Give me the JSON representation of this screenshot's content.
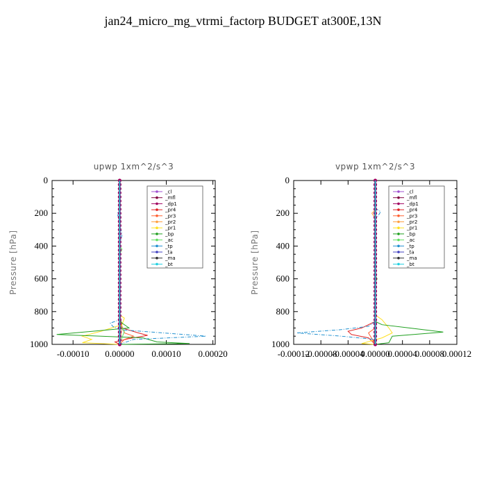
{
  "title": "jan24_micro_mg_vtrmi_factorp  BUDGET at300E,13N",
  "chart_data": [
    {
      "type": "line",
      "title": "upwp   1xm^2/s^3",
      "ylabel": "Pressure [hPa]",
      "xlabel": "",
      "xlim": [
        -0.000145,
        0.000205
      ],
      "ylim": [
        1000,
        0
      ],
      "x_ticks": [
        -0.0001,
        0.0,
        0.0001,
        0.0002
      ],
      "x_tick_labels": [
        "-0.00010",
        "0.00000",
        "0.00010",
        "0.00020"
      ],
      "y_ticks": [
        0,
        200,
        400,
        600,
        800,
        1000
      ],
      "y_tick_labels": [
        "0",
        "200",
        "400",
        "600",
        "800",
        "1000"
      ],
      "legend_position": "top-right",
      "series": [
        {
          "name": "_cl",
          "color": "#a050d0",
          "points": [
            [
              0,
              0
            ],
            [
              0,
              1000
            ]
          ]
        },
        {
          "name": "_mfl",
          "color": "#800040",
          "points": [
            [
              0,
              0
            ],
            [
              0,
              1000
            ]
          ]
        },
        {
          "name": "_dp1",
          "color": "#a00060",
          "points": [
            [
              0,
              0
            ],
            [
              0,
              1000
            ]
          ]
        },
        {
          "name": "_pr4",
          "color": "#e02020",
          "points": [
            [
              0,
              0
            ],
            [
              0,
              800
            ],
            [
              5e-06,
              900
            ],
            [
              4e-05,
              930
            ],
            [
              6e-05,
              945
            ],
            [
              2e-05,
              965
            ],
            [
              -1e-05,
              985
            ],
            [
              0,
              1000
            ]
          ]
        },
        {
          "name": "_pr3",
          "color": "#ff6030",
          "points": [
            [
              0,
              0
            ],
            [
              0,
              850
            ],
            [
              1e-05,
              930
            ],
            [
              3e-05,
              950
            ],
            [
              1e-05,
              970
            ],
            [
              0,
              1000
            ]
          ]
        },
        {
          "name": "_pr2",
          "color": "#ffa040",
          "points": [
            [
              0,
              0
            ],
            [
              0,
              850
            ],
            [
              5e-06,
              900
            ],
            [
              0,
              1000
            ]
          ]
        },
        {
          "name": "_pr1",
          "color": "#ffe020",
          "points": [
            [
              0,
              0
            ],
            [
              0,
              820
            ],
            [
              1e-05,
              840
            ],
            [
              5e-06,
              880
            ],
            [
              -4e-05,
              920
            ],
            [
              -8e-05,
              950
            ],
            [
              -6e-05,
              970
            ],
            [
              -8e-05,
              990
            ],
            [
              0,
              1000
            ]
          ]
        },
        {
          "name": "_bp",
          "color": "#20a020",
          "points": [
            [
              0,
              0
            ],
            [
              0,
              850
            ],
            [
              5e-06,
              870
            ],
            [
              2e-05,
              900
            ],
            [
              -0.000135,
              940
            ],
            [
              5e-05,
              960
            ],
            [
              8e-05,
              985
            ],
            [
              0.00015,
              995
            ],
            [
              0,
              1000
            ]
          ]
        },
        {
          "name": "_ac",
          "color": "#60e060",
          "points": [
            [
              0,
              0
            ],
            [
              0,
              400
            ],
            [
              5e-06,
              420
            ],
            [
              0,
              450
            ],
            [
              0,
              880
            ],
            [
              1e-05,
              920
            ],
            [
              0,
              1000
            ]
          ]
        },
        {
          "name": "_tp",
          "color": "#2090d0",
          "points": [
            [
              0,
              0
            ],
            [
              0,
              180
            ],
            [
              -5e-06,
              200
            ],
            [
              0,
              260
            ],
            [
              5e-06,
              330
            ],
            [
              0,
              400
            ],
            [
              0,
              850
            ],
            [
              -2e-05,
              870
            ],
            [
              -1.5e-05,
              890
            ],
            [
              0,
              910
            ],
            [
              0.000185,
              950
            ],
            [
              3e-05,
              970
            ],
            [
              0,
              1000
            ]
          ]
        },
        {
          "name": "_ta",
          "color": "#4040c0",
          "points": [
            [
              0,
              0
            ],
            [
              0,
              1000
            ]
          ]
        },
        {
          "name": "_ma",
          "color": "#303030",
          "points": [
            [
              0,
              0
            ],
            [
              0,
              1000
            ]
          ]
        },
        {
          "name": "_bt",
          "color": "#20d0e0",
          "points": [
            [
              0,
              0
            ],
            [
              0,
              1000
            ]
          ]
        }
      ]
    },
    {
      "type": "line",
      "title": "vpwp   1xm^2/s^3",
      "ylabel": "Pressure [hPa]",
      "xlabel": "",
      "xlim": [
        -0.00012,
        0.00012
      ],
      "ylim": [
        1000,
        0
      ],
      "x_ticks": [
        -0.00012,
        -8e-05,
        -4e-05,
        0.0,
        4e-05,
        8e-05,
        0.00012
      ],
      "x_tick_labels": [
        "-0.00012",
        "-0.00008",
        "-0.00004",
        "0.00000",
        "0.00004",
        "0.00008",
        "0.00012"
      ],
      "y_ticks": [
        0,
        200,
        400,
        600,
        800,
        1000
      ],
      "y_tick_labels": [
        "0",
        "200",
        "400",
        "600",
        "800",
        "1000"
      ],
      "legend_position": "top-right",
      "series": [
        {
          "name": "_cl",
          "color": "#a050d0",
          "points": [
            [
              0,
              0
            ],
            [
              0,
              1000
            ]
          ]
        },
        {
          "name": "_mfl",
          "color": "#800040",
          "points": [
            [
              0,
              0
            ],
            [
              0,
              1000
            ]
          ]
        },
        {
          "name": "_dp1",
          "color": "#a00060",
          "points": [
            [
              0,
              0
            ],
            [
              0,
              1000
            ]
          ]
        },
        {
          "name": "_pr4",
          "color": "#e02020",
          "points": [
            [
              0,
              0
            ],
            [
              0,
              860
            ],
            [
              -2e-05,
              900
            ],
            [
              -4e-05,
              920
            ],
            [
              -3.5e-05,
              940
            ],
            [
              -1e-05,
              960
            ],
            [
              0,
              1000
            ]
          ]
        },
        {
          "name": "_pr3",
          "color": "#ff6030",
          "points": [
            [
              0,
              0
            ],
            [
              0,
              900
            ],
            [
              -1e-05,
              930
            ],
            [
              0,
              1000
            ]
          ]
        },
        {
          "name": "_pr2",
          "color": "#ffa040",
          "points": [
            [
              0,
              0
            ],
            [
              0,
              180
            ],
            [
              -5e-06,
              200
            ],
            [
              0,
              230
            ],
            [
              0,
              1000
            ]
          ]
        },
        {
          "name": "_pr1",
          "color": "#ffe020",
          "points": [
            [
              0,
              0
            ],
            [
              0,
              820
            ],
            [
              1e-05,
              850
            ],
            [
              2e-05,
              900
            ],
            [
              2.5e-05,
              930
            ],
            [
              1e-05,
              960
            ],
            [
              -2e-05,
              995
            ],
            [
              0,
              1000
            ]
          ]
        },
        {
          "name": "_bp",
          "color": "#20a020",
          "points": [
            [
              0,
              0
            ],
            [
              0,
              860
            ],
            [
              1e-05,
              880
            ],
            [
              5e-05,
              900
            ],
            [
              0.0001,
              925
            ],
            [
              2.5e-05,
              950
            ],
            [
              2e-05,
              990
            ],
            [
              0,
              1000
            ]
          ]
        },
        {
          "name": "_ac",
          "color": "#60e060",
          "points": [
            [
              0,
              0
            ],
            [
              0,
              580
            ],
            [
              3e-06,
              600
            ],
            [
              0,
              620
            ],
            [
              0,
              1000
            ]
          ]
        },
        {
          "name": "_tp",
          "color": "#2090d0",
          "points": [
            [
              0,
              0
            ],
            [
              0,
              170
            ],
            [
              8e-06,
              190
            ],
            [
              5e-06,
              210
            ],
            [
              0,
              240
            ],
            [
              0,
              860
            ],
            [
              -1e-05,
              890
            ],
            [
              -5e-05,
              910
            ],
            [
              -0.000115,
              930
            ],
            [
              -5e-05,
              950
            ],
            [
              0,
              970
            ],
            [
              0,
              1000
            ]
          ]
        },
        {
          "name": "_ta",
          "color": "#4040c0",
          "points": [
            [
              0,
              0
            ],
            [
              0,
              1000
            ]
          ]
        },
        {
          "name": "_ma",
          "color": "#303030",
          "points": [
            [
              0,
              0
            ],
            [
              0,
              1000
            ]
          ]
        },
        {
          "name": "_bt",
          "color": "#20d0e0",
          "points": [
            [
              0,
              0
            ],
            [
              0,
              1000
            ]
          ]
        }
      ]
    }
  ]
}
